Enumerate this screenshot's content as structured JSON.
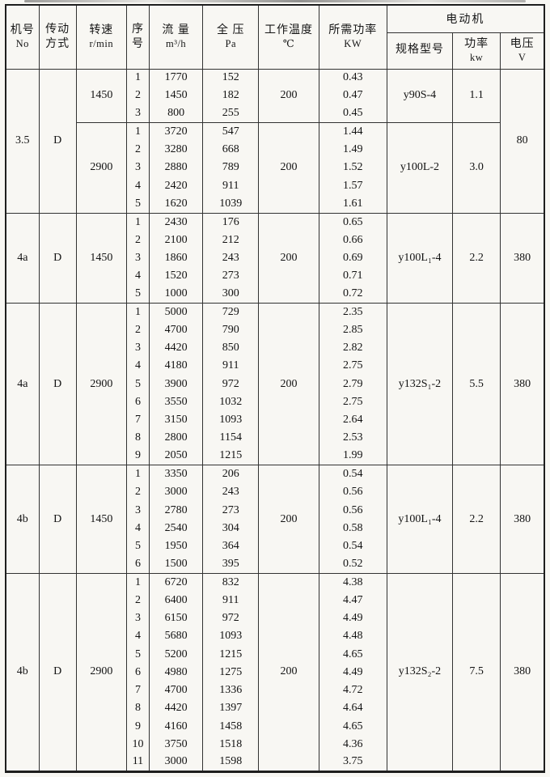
{
  "style": {
    "ink": "#323232",
    "frame": "#1e1e1e",
    "paper": "#f8f7f3"
  },
  "table": {
    "header": {
      "machine": {
        "l1": "机号",
        "l2": "No"
      },
      "drive": {
        "l1": "传动",
        "l2": "方式"
      },
      "speed": {
        "l1": "转速",
        "l2": "r/min"
      },
      "seq": {
        "l1": "序",
        "l2": "号"
      },
      "flow": {
        "l1": "流 量",
        "l2": "m³/h"
      },
      "pressure": {
        "l1": "全 压",
        "l2": "Pa"
      },
      "temp": {
        "l1": "工作温度",
        "l2": "℃"
      },
      "req_power": {
        "l1": "所需功率",
        "l2": "KW"
      },
      "motor_group": "电动机",
      "model": "规格型号",
      "motor_power": {
        "l1": "功率",
        "l2": "kw"
      },
      "voltage": {
        "l1": "电压",
        "l2": "V"
      }
    },
    "sections": [
      {
        "machine_no": "3.5",
        "drive": "D",
        "voltage": "80",
        "blocks": [
          {
            "speed": "1450",
            "temp": "200",
            "model": "y90S-4",
            "motor_power": "1.1",
            "rows": [
              [
                "1",
                "1770",
                "152",
                "0.43"
              ],
              [
                "2",
                "1450",
                "182",
                "0.47"
              ],
              [
                "3",
                "800",
                "255",
                "0.45"
              ]
            ]
          },
          {
            "speed": "2900",
            "temp": "200",
            "model": "y100L-2",
            "motor_power": "3.0",
            "rows": [
              [
                "1",
                "3720",
                "547",
                "1.44"
              ],
              [
                "2",
                "3280",
                "668",
                "1.49"
              ],
              [
                "3",
                "2880",
                "789",
                "1.52"
              ],
              [
                "4",
                "2420",
                "911",
                "1.57"
              ],
              [
                "5",
                "1620",
                "1039",
                "1.61"
              ]
            ]
          }
        ]
      },
      {
        "machine_no": "4a",
        "drive": "D",
        "voltage": "380",
        "blocks": [
          {
            "speed": "1450",
            "temp": "200",
            "model": "y100L₁-4",
            "motor_power": "2.2",
            "rows": [
              [
                "1",
                "2430",
                "176",
                "0.65"
              ],
              [
                "2",
                "2100",
                "212",
                "0.66"
              ],
              [
                "3",
                "1860",
                "243",
                "0.69"
              ],
              [
                "4",
                "1520",
                "273",
                "0.71"
              ],
              [
                "5",
                "1000",
                "300",
                "0.72"
              ]
            ]
          }
        ]
      },
      {
        "machine_no": "4a",
        "drive": "D",
        "voltage": "380",
        "blocks": [
          {
            "speed": "2900",
            "temp": "200",
            "model": "y132S₁-2",
            "motor_power": "5.5",
            "rows": [
              [
                "1",
                "5000",
                "729",
                "2.35"
              ],
              [
                "2",
                "4700",
                "790",
                "2.85"
              ],
              [
                "3",
                "4420",
                "850",
                "2.82"
              ],
              [
                "4",
                "4180",
                "911",
                "2.75"
              ],
              [
                "5",
                "3900",
                "972",
                "2.79"
              ],
              [
                "6",
                "3550",
                "1032",
                "2.75"
              ],
              [
                "7",
                "3150",
                "1093",
                "2.64"
              ],
              [
                "8",
                "2800",
                "1154",
                "2.53"
              ],
              [
                "9",
                "2050",
                "1215",
                "1.99"
              ]
            ]
          }
        ]
      },
      {
        "machine_no": "4b",
        "drive": "D",
        "voltage": "380",
        "blocks": [
          {
            "speed": "1450",
            "temp": "200",
            "model": "y100L₁-4",
            "motor_power": "2.2",
            "rows": [
              [
                "1",
                "3350",
                "206",
                "0.54"
              ],
              [
                "2",
                "3000",
                "243",
                "0.56"
              ],
              [
                "3",
                "2780",
                "273",
                "0.56"
              ],
              [
                "4",
                "2540",
                "304",
                "0.58"
              ],
              [
                "5",
                "1950",
                "364",
                "0.54"
              ],
              [
                "6",
                "1500",
                "395",
                "0.52"
              ]
            ]
          }
        ]
      },
      {
        "machine_no": "4b",
        "drive": "D",
        "voltage": "380",
        "blocks": [
          {
            "speed": "2900",
            "temp": "200",
            "model": "y132S₂-2",
            "motor_power": "7.5",
            "rows": [
              [
                "1",
                "6720",
                "832",
                "4.38"
              ],
              [
                "2",
                "6400",
                "911",
                "4.47"
              ],
              [
                "3",
                "6150",
                "972",
                "4.49"
              ],
              [
                "4",
                "5680",
                "1093",
                "4.48"
              ],
              [
                "5",
                "5200",
                "1215",
                "4.65"
              ],
              [
                "6",
                "4980",
                "1275",
                "4.49"
              ],
              [
                "7",
                "4700",
                "1336",
                "4.72"
              ],
              [
                "8",
                "4420",
                "1397",
                "4.64"
              ],
              [
                "9",
                "4160",
                "1458",
                "4.65"
              ],
              [
                "10",
                "3750",
                "1518",
                "4.36"
              ],
              [
                "11",
                "3000",
                "1598",
                "3.75"
              ]
            ]
          }
        ]
      }
    ]
  }
}
